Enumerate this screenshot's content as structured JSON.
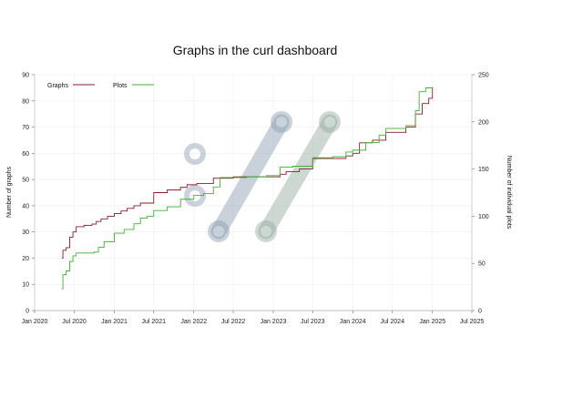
{
  "chart_data": {
    "type": "line",
    "title": "Graphs in the curl dashboard",
    "ylabel_left": "Number of graphs",
    "ylabel_right": "Number of individual plots",
    "x_ticks": [
      "Jan 2020",
      "Jul 2020",
      "Jan 2021",
      "Jul 2021",
      "Jan 2022",
      "Jul 2022",
      "Jan 2023",
      "Jul 2023",
      "Jan 2024",
      "Jul 2024",
      "Jan 2025",
      "Jul 2025"
    ],
    "x_range": [
      "2020-01-01",
      "2025-07-01"
    ],
    "ylim_left": [
      0,
      90
    ],
    "ylim_right": [
      0,
      250
    ],
    "yticks_left": [
      "0",
      "10",
      "20",
      "30",
      "40",
      "50",
      "60",
      "70",
      "80",
      "90"
    ],
    "yticks_right": [
      "0",
      "50",
      "100",
      "150",
      "200",
      "250"
    ],
    "grid": true,
    "legend_position": "top-left",
    "colors": {
      "graphs": "#8b1a2b",
      "plots": "#3ab52e",
      "watermark": "#8a9bb0",
      "watermark_alt": "#93ab9f"
    },
    "series": [
      {
        "name": "Graphs",
        "axis": "left",
        "points": [
          [
            "2020-05-05",
            20
          ],
          [
            "2020-05-10",
            23
          ],
          [
            "2020-05-25",
            24
          ],
          [
            "2020-06-10",
            28
          ],
          [
            "2020-06-25",
            30
          ],
          [
            "2020-07-10",
            32
          ],
          [
            "2020-08-15",
            32.5
          ],
          [
            "2020-09-20",
            33
          ],
          [
            "2020-10-10",
            34
          ],
          [
            "2020-11-01",
            35
          ],
          [
            "2020-12-01",
            36
          ],
          [
            "2021-01-01",
            37
          ],
          [
            "2021-02-01",
            38
          ],
          [
            "2021-03-01",
            39
          ],
          [
            "2021-04-01",
            40
          ],
          [
            "2021-05-01",
            41
          ],
          [
            "2021-06-15",
            41
          ],
          [
            "2021-07-01",
            45
          ],
          [
            "2021-08-10",
            45
          ],
          [
            "2021-09-01",
            46
          ],
          [
            "2021-11-01",
            47
          ],
          [
            "2021-12-01",
            48
          ],
          [
            "2022-01-15",
            48.5
          ],
          [
            "2022-03-15",
            48.5
          ],
          [
            "2022-04-01",
            50.5
          ],
          [
            "2022-07-01",
            51
          ],
          [
            "2022-10-01",
            51
          ],
          [
            "2023-01-01",
            51
          ],
          [
            "2023-02-01",
            52
          ],
          [
            "2023-03-01",
            53
          ],
          [
            "2023-05-01",
            54
          ],
          [
            "2023-07-01",
            58
          ],
          [
            "2023-10-01",
            58
          ],
          [
            "2023-12-01",
            59
          ],
          [
            "2024-01-01",
            60
          ],
          [
            "2024-02-01",
            64
          ],
          [
            "2024-04-01",
            65
          ],
          [
            "2024-06-01",
            68
          ],
          [
            "2024-09-01",
            70
          ],
          [
            "2024-10-15",
            75
          ],
          [
            "2024-11-15",
            79
          ],
          [
            "2024-12-15",
            81
          ],
          [
            "2025-01-01",
            85
          ]
        ]
      },
      {
        "name": "Plots",
        "axis": "right",
        "points": [
          [
            "2020-05-05",
            23
          ],
          [
            "2020-05-10",
            38
          ],
          [
            "2020-05-25",
            42
          ],
          [
            "2020-06-10",
            52
          ],
          [
            "2020-06-25",
            58
          ],
          [
            "2020-07-10",
            61
          ],
          [
            "2020-10-01",
            62
          ],
          [
            "2020-10-20",
            67
          ],
          [
            "2020-11-15",
            73
          ],
          [
            "2021-01-01",
            82
          ],
          [
            "2021-02-15",
            86
          ],
          [
            "2021-04-01",
            92
          ],
          [
            "2021-05-01",
            98
          ],
          [
            "2021-06-01",
            100
          ],
          [
            "2021-07-01",
            106
          ],
          [
            "2021-09-01",
            110
          ],
          [
            "2021-11-01",
            118
          ],
          [
            "2022-01-01",
            122
          ],
          [
            "2022-02-15",
            124
          ],
          [
            "2022-04-01",
            131
          ],
          [
            "2022-05-01",
            141
          ],
          [
            "2022-09-01",
            142
          ],
          [
            "2022-12-01",
            143
          ],
          [
            "2023-02-01",
            152
          ],
          [
            "2023-04-01",
            153
          ],
          [
            "2023-07-01",
            162
          ],
          [
            "2023-10-01",
            163
          ],
          [
            "2023-12-01",
            168
          ],
          [
            "2024-01-01",
            170
          ],
          [
            "2024-03-01",
            178
          ],
          [
            "2024-05-01",
            186
          ],
          [
            "2024-06-01",
            193
          ],
          [
            "2024-09-01",
            196
          ],
          [
            "2024-10-15",
            212
          ],
          [
            "2024-11-01",
            232
          ],
          [
            "2024-12-01",
            236
          ],
          [
            "2025-01-01",
            237
          ]
        ]
      }
    ]
  }
}
